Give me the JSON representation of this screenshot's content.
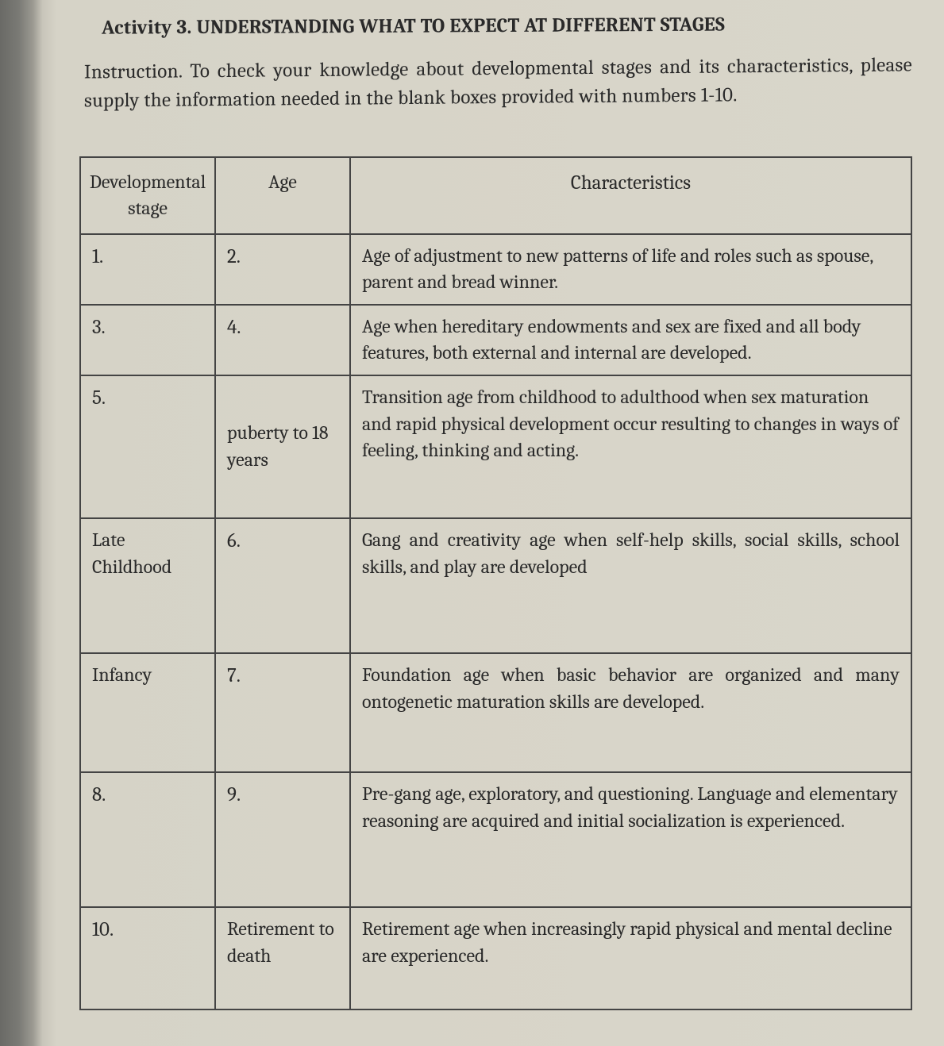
{
  "title": "Activity 3. UNDERSTANDING WHAT TO EXPECT AT DIFFERENT STAGES",
  "instruction_label": "Instruction.",
  "instruction_text": " To check your knowledge about developmental stages and its characteristics, please supply the information needed in the blank boxes provided with numbers 1-10.",
  "headers": {
    "stage": "Developmental stage",
    "age": "Age",
    "characteristics": "Characteristics"
  },
  "rows": [
    {
      "stage": "1.",
      "age": "2.",
      "char": "Age of adjustment to new patterns of life and roles such as spouse, parent and bread winner."
    },
    {
      "stage": "3.",
      "age": "4.",
      "char": "Age when hereditary endowments and sex are fixed and all body features, both external and internal are developed."
    },
    {
      "stage": "5.",
      "age": "puberty to 18 years",
      "char": "Transition age from childhood to adulthood when sex maturation and rapid physical development occur resulting to changes in ways of feeling, thinking and acting."
    },
    {
      "stage": "Late Childhood",
      "age": "6.",
      "char": "Gang and creativity age when  self-help  skills, social skills, school skills, and play are developed"
    },
    {
      "stage": "Infancy",
      "age": "7.",
      "char": "Foundation age when basic behavior are organized and many ontogenetic maturation skills are developed."
    },
    {
      "stage": "8.",
      "age": "9.",
      "char": "Pre-gang age, exploratory, and questioning. Language and elementary reasoning are acquired and initial socialization is experienced."
    },
    {
      "stage": "10.",
      "age": "Retirement to death",
      "char": "Retirement age when increasingly rapid physical and mental decline are experienced."
    }
  ],
  "colors": {
    "text": "#2a2a2a",
    "border": "#444444",
    "paper": "#d9d6ca",
    "shadow_dark": "#6a6a66"
  },
  "font": {
    "title_size_pt": 18,
    "body_size_pt": 18,
    "family": "Cambria"
  }
}
